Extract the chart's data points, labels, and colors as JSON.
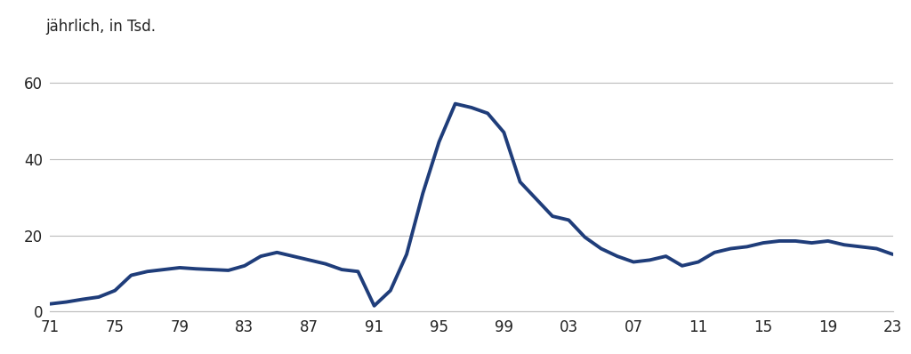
{
  "years": [
    1971,
    1972,
    1973,
    1974,
    1975,
    1976,
    1977,
    1978,
    1979,
    1980,
    1981,
    1982,
    1983,
    1984,
    1985,
    1986,
    1987,
    1988,
    1989,
    1990,
    1991,
    1992,
    1993,
    1994,
    1995,
    1996,
    1997,
    1998,
    1999,
    2000,
    2001,
    2002,
    2003,
    2004,
    2005,
    2006,
    2007,
    2008,
    2009,
    2010,
    2011,
    2012,
    2013,
    2014,
    2015,
    2016,
    2017,
    2018,
    2019,
    2020,
    2021,
    2022,
    2023
  ],
  "values": [
    2.0,
    2.5,
    3.2,
    3.8,
    5.5,
    9.5,
    10.5,
    11.0,
    11.5,
    11.2,
    11.0,
    10.8,
    12.0,
    14.5,
    15.5,
    14.5,
    13.5,
    12.5,
    11.0,
    10.5,
    1.5,
    5.5,
    15.0,
    31.0,
    44.5,
    54.5,
    53.5,
    52.0,
    47.0,
    34.0,
    29.5,
    25.0,
    24.0,
    19.5,
    16.5,
    14.5,
    13.0,
    13.5,
    14.5,
    12.0,
    13.0,
    15.5,
    16.5,
    17.0,
    18.0,
    18.5,
    18.5,
    18.0,
    18.5,
    17.5,
    17.0,
    16.5,
    15.0
  ],
  "line_color": "#1f3d7a",
  "line_width": 2.8,
  "ylabel": "jährlich, in Tsd.",
  "ylim": [
    0,
    65
  ],
  "yticks": [
    0,
    20,
    40,
    60
  ],
  "xtick_years": [
    1971,
    1975,
    1979,
    1983,
    1987,
    1991,
    1995,
    1999,
    2003,
    2007,
    2011,
    2015,
    2019,
    2023
  ],
  "xticklabels": [
    "71",
    "75",
    "79",
    "83",
    "87",
    "91",
    "95",
    "99",
    "03",
    "07",
    "11",
    "15",
    "19",
    "23"
  ],
  "background_color": "#ffffff",
  "grid_color": "#bbbbbb",
  "tick_fontsize": 12,
  "label_fontsize": 12
}
